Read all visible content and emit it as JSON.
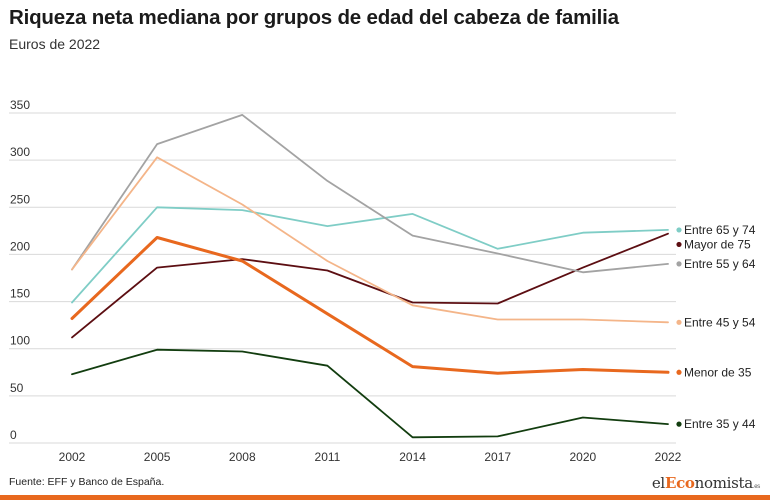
{
  "header": {
    "title": "Riqueza neta mediana por grupos de edad del cabeza de familia",
    "subtitle": "Euros de 2022"
  },
  "footer": {
    "source": "Fuente: EFF y Banco de España.",
    "logo_prefix": "el",
    "logo_accent": "Eco",
    "logo_rest": "nomista",
    "logo_suffix": ".es"
  },
  "colors": {
    "accent": "#e8681e",
    "grid": "#d9d9d9"
  },
  "chart_data": {
    "type": "line",
    "title": "Riqueza neta mediana por grupos de edad del cabeza de familia",
    "subtitle": "Euros de 2022",
    "xlabel": "",
    "ylabel": "",
    "x": [
      "2002",
      "2005",
      "2008",
      "2011",
      "2014",
      "2017",
      "2020",
      "2022"
    ],
    "ylim": [
      0,
      350
    ],
    "yticks": [
      0,
      50,
      100,
      150,
      200,
      250,
      300,
      350
    ],
    "grid": true,
    "legend": "end-labels",
    "series": [
      {
        "name": "Entre 65 y 74",
        "color": "#7fcdc6",
        "width": 1.8,
        "values": [
          149,
          250,
          247,
          230,
          243,
          206,
          223,
          226
        ]
      },
      {
        "name": "Mayor de 75",
        "color": "#5c0e12",
        "width": 1.8,
        "values": [
          112,
          186,
          195,
          183,
          149,
          148,
          186,
          222
        ]
      },
      {
        "name": "Entre 55 y 64",
        "color": "#a3a3a3",
        "width": 1.8,
        "values": [
          184,
          317,
          348,
          278,
          220,
          201,
          181,
          190
        ]
      },
      {
        "name": "Entre 45 y 54",
        "color": "#f4b589",
        "width": 1.8,
        "values": [
          184,
          303,
          253,
          193,
          146,
          131,
          131,
          128
        ]
      },
      {
        "name": "Menor de 35",
        "color": "#e8681e",
        "width": 3,
        "values": [
          132,
          218,
          193,
          137,
          81,
          74,
          78,
          75
        ]
      },
      {
        "name": "Entre 35 y 44",
        "color": "#123d0f",
        "width": 1.8,
        "values": [
          73,
          99,
          97,
          82,
          6,
          7,
          27,
          20
        ]
      }
    ]
  }
}
